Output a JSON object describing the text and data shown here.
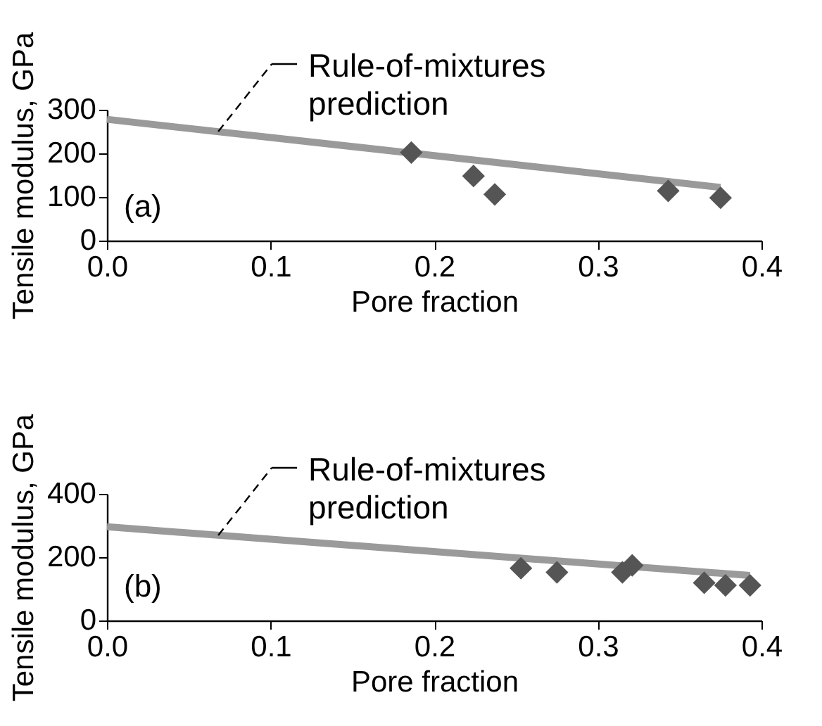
{
  "chart_data": [
    {
      "type": "scatter",
      "xlabel": "Pore fraction",
      "ylabel": "Tensile modulus, GPa",
      "xlim": [
        0,
        0.4
      ],
      "xticks": [
        {
          "value": 0,
          "label": "0.0"
        },
        0.1,
        0.2,
        0.3,
        0.4
      ],
      "ylim": [
        0,
        300
      ],
      "yticks": [
        0,
        100,
        200,
        300
      ],
      "grid": false,
      "annotations": [
        {
          "text": "Rule-of-mixtures prediction",
          "x": 0.068,
          "y": 250
        },
        "(a)"
      ],
      "series": [
        {
          "type": "line",
          "color": "#9a9a9a",
          "marker": "none",
          "line_style": "solid",
          "x": [
            0,
            0.375
          ],
          "values": [
            278,
            122
          ]
        },
        {
          "type": "scatter",
          "color": "#555555",
          "marker": "diamond",
          "x": [
            0.186,
            0.224,
            0.237,
            0.343,
            0.375
          ],
          "values": [
            202,
            148,
            106,
            114,
            98
          ]
        }
      ]
    },
    {
      "type": "scatter",
      "xlabel": "Pore fraction",
      "ylabel": "Tensile modulus, GPa",
      "xlim": [
        0,
        0.4
      ],
      "xticks": [
        {
          "value": 0,
          "label": "0.0"
        },
        0.1,
        0.2,
        0.3,
        0.4
      ],
      "ylim": [
        0,
        400
      ],
      "yticks": [
        0,
        200,
        400
      ],
      "grid": false,
      "annotations": [
        {
          "text": "Rule-of-mixtures prediction",
          "x": 0.068,
          "y": 269
        },
        "(b)"
      ],
      "series": [
        {
          "type": "line",
          "color": "#9a9a9a",
          "marker": "none",
          "line_style": "solid",
          "x": [
            0,
            0.393
          ],
          "values": [
            296,
            142
          ]
        },
        {
          "type": "scatter",
          "color": "#555555",
          "marker": "diamond",
          "x": [
            0.253,
            0.275,
            0.315,
            0.321,
            0.365,
            0.378,
            0.393
          ],
          "values": [
            165,
            152,
            152,
            174,
            119,
            111,
            111
          ]
        }
      ]
    }
  ]
}
